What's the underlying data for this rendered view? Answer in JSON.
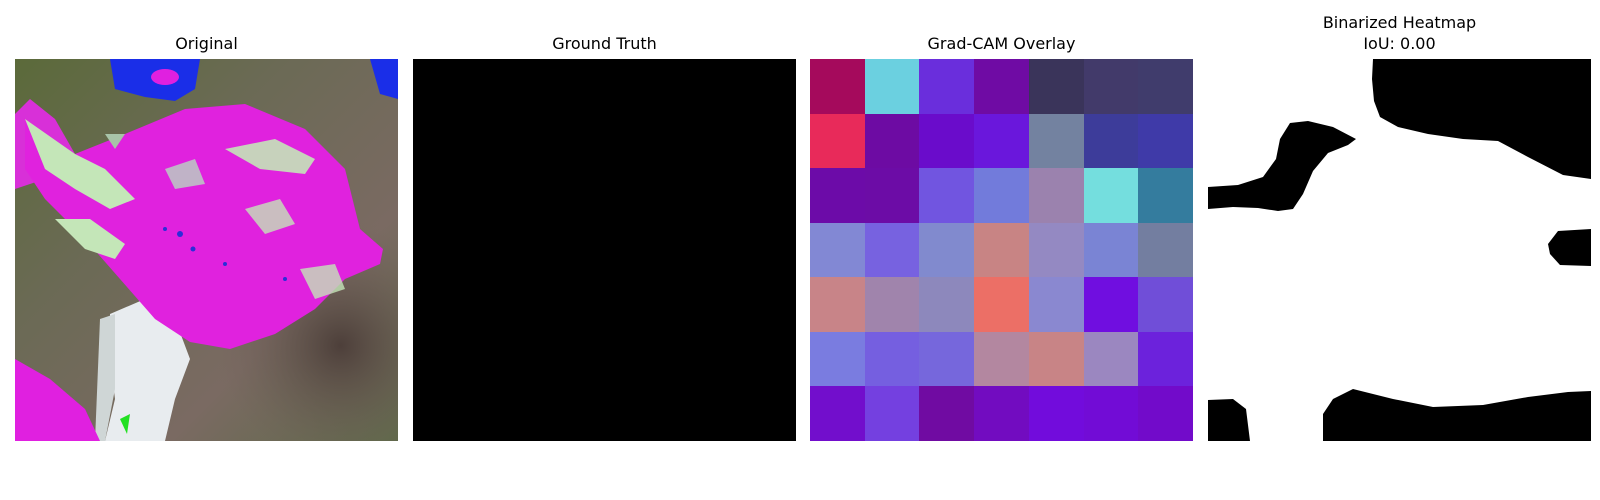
{
  "panels": {
    "original": {
      "title": "Original"
    },
    "ground_truth": {
      "title": "Ground Truth"
    },
    "gradcam": {
      "title": "Grad-CAM Overlay",
      "rows": 7,
      "cols": 7,
      "cells": [
        [
          "#a50a5c",
          "#6bd0e0",
          "#6a2edc",
          "#6f0ba4",
          "#3a345a",
          "#423a6a",
          "#403c6c"
        ],
        [
          "#e82a5a",
          "#6d0ba3",
          "#6a0ccb",
          "#6a17dc",
          "#7382a0",
          "#3d3c9a",
          "#3f3aa8"
        ],
        [
          "#6c0ba8",
          "#6c0ca6",
          "#7155e0",
          "#727bdb",
          "#9b82ae",
          "#74dede",
          "#347c9e"
        ],
        [
          "#8288d4",
          "#7762e0",
          "#818ace",
          "#c88484",
          "#9489c2",
          "#7a84d4",
          "#737ea0"
        ],
        [
          "#c88488",
          "#a084ac",
          "#8d88bc",
          "#ec6f66",
          "#8a88d0",
          "#700ee0",
          "#704ed8"
        ],
        [
          "#7a7ce0",
          "#755fe0",
          "#7667dc",
          "#b387a0",
          "#c88486",
          "#9b87c0",
          "#6c22dc"
        ],
        [
          "#720ecc",
          "#7440e0",
          "#700ba2",
          "#720cc0",
          "#720cdc",
          "#720cd6",
          "#720bca"
        ]
      ]
    },
    "binarized": {
      "title_line1": "Binarized Heatmap",
      "title_line2": "IoU: 0.00"
    }
  }
}
